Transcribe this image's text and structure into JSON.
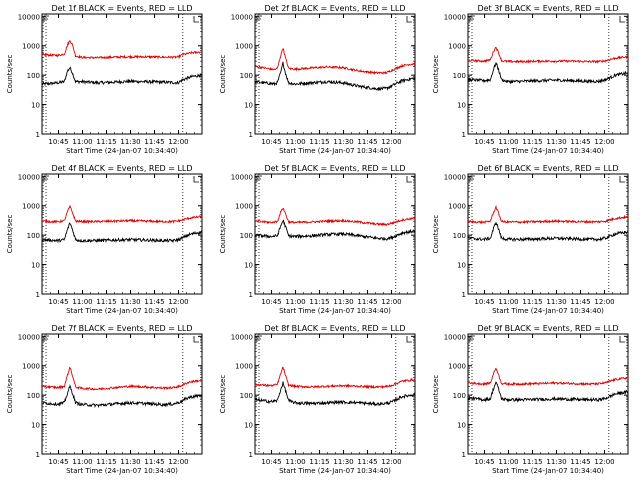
{
  "colors": {
    "events": "#000000",
    "lld": "#e00000",
    "axes": "#000000",
    "background": "#ffffff"
  },
  "chart_data": {
    "type": "line",
    "yscale": "log",
    "xlabel": "Start Time (24-Jan-07 10:34:40)",
    "ylabel": "Counts/sec",
    "x_unit": "minutes after 10:34:40",
    "xlim": [
      0,
      100
    ],
    "ylim": [
      1,
      12000
    ],
    "x_ticks": [
      {
        "label": "10:45",
        "value": 10.33
      },
      {
        "label": "11:00",
        "value": 25.33
      },
      {
        "label": "11:15",
        "value": 40.33
      },
      {
        "label": "11:30",
        "value": 55.33
      },
      {
        "label": "11:45",
        "value": 70.33
      },
      {
        "label": "12:00",
        "value": 85.33
      }
    ],
    "y_ticks": [
      {
        "label": "1",
        "value": 1
      },
      {
        "label": "10",
        "value": 10
      },
      {
        "label": "100",
        "value": 100
      },
      {
        "label": "1000",
        "value": 1000
      },
      {
        "label": "10000",
        "value": 10000
      }
    ],
    "vlines": [
      2.5,
      88
    ],
    "grid": false,
    "panels": [
      {
        "title": "Det 1f BLACK = Events, RED = LLD",
        "series": [
          {
            "key": "events",
            "x": [
              0,
              5,
              10,
              14,
              16,
              17.5,
              19,
              21,
              25,
              35,
              45,
              55,
              65,
              75,
              82,
              85,
              88,
              94,
              100
            ],
            "y": [
              50,
              52,
              55,
              60,
              140,
              180,
              120,
              60,
              60,
              55,
              58,
              62,
              60,
              58,
              56,
              55,
              70,
              90,
              100
            ]
          },
          {
            "key": "lld",
            "x": [
              0,
              5,
              10,
              14,
              16,
              17.5,
              19,
              21,
              25,
              35,
              45,
              55,
              65,
              75,
              82,
              85,
              88,
              94,
              100
            ],
            "y": [
              500,
              480,
              470,
              520,
              1100,
              1500,
              1100,
              450,
              400,
              390,
              410,
              420,
              420,
              410,
              410,
              410,
              500,
              580,
              620
            ]
          }
        ]
      },
      {
        "title": "Det 2f BLACK = Events, RED = LLD",
        "series": [
          {
            "key": "events",
            "x": [
              0,
              5,
              10,
              12,
              14,
              16,
              17.5,
              19,
              21,
              25,
              35,
              45,
              55,
              65,
              75,
              82,
              86,
              92,
              100
            ],
            "y": [
              60,
              55,
              52,
              50,
              55,
              120,
              260,
              120,
              55,
              50,
              55,
              60,
              55,
              42,
              35,
              35,
              45,
              65,
              80
            ]
          },
          {
            "key": "lld",
            "x": [
              0,
              5,
              10,
              12,
              14,
              16,
              17.5,
              19,
              21,
              25,
              35,
              45,
              55,
              65,
              75,
              82,
              86,
              92,
              100
            ],
            "y": [
              200,
              180,
              160,
              155,
              170,
              450,
              850,
              400,
              170,
              160,
              175,
              190,
              180,
              140,
              120,
              120,
              150,
              210,
              250
            ]
          }
        ]
      },
      {
        "title": "Det 3f BLACK = Events, RED = LLD",
        "series": [
          {
            "key": "events",
            "x": [
              0,
              5,
              10,
              14,
              16,
              17.5,
              19,
              21,
              25,
              35,
              45,
              55,
              65,
              75,
              82,
              86,
              92,
              100
            ],
            "y": [
              70,
              68,
              65,
              70,
              160,
              260,
              160,
              70,
              60,
              62,
              65,
              68,
              65,
              62,
              62,
              70,
              100,
              120
            ]
          },
          {
            "key": "lld",
            "x": [
              0,
              5,
              10,
              14,
              16,
              17.5,
              19,
              21,
              25,
              35,
              45,
              55,
              65,
              75,
              82,
              86,
              92,
              100
            ],
            "y": [
              320,
              310,
              300,
              330,
              650,
              900,
              600,
              310,
              290,
              290,
              300,
              300,
              300,
              290,
              290,
              310,
              380,
              420
            ]
          }
        ]
      },
      {
        "title": "Det 4f BLACK = Events, RED = LLD",
        "series": [
          {
            "key": "events",
            "x": [
              0,
              5,
              10,
              14,
              16,
              17.5,
              19,
              21,
              25,
              35,
              45,
              55,
              65,
              75,
              82,
              86,
              92,
              100
            ],
            "y": [
              70,
              68,
              65,
              70,
              160,
              260,
              160,
              70,
              65,
              65,
              68,
              70,
              68,
              65,
              65,
              72,
              105,
              130
            ]
          },
          {
            "key": "lld",
            "x": [
              0,
              5,
              10,
              14,
              16,
              17.5,
              19,
              21,
              25,
              35,
              45,
              55,
              65,
              75,
              82,
              86,
              92,
              100
            ],
            "y": [
              300,
              290,
              285,
              310,
              650,
              950,
              600,
              300,
              290,
              290,
              300,
              310,
              300,
              290,
              290,
              310,
              380,
              430
            ]
          }
        ]
      },
      {
        "title": "Det 5f BLACK = Events, RED = LLD",
        "series": [
          {
            "key": "events",
            "x": [
              0,
              5,
              10,
              14,
              16,
              17.5,
              19,
              21,
              25,
              35,
              45,
              55,
              65,
              75,
              82,
              86,
              92,
              100
            ],
            "y": [
              100,
              95,
              90,
              95,
              200,
              320,
              200,
              95,
              90,
              95,
              105,
              110,
              95,
              80,
              75,
              85,
              120,
              140
            ]
          },
          {
            "key": "lld",
            "x": [
              0,
              5,
              10,
              14,
              16,
              17.5,
              19,
              21,
              25,
              35,
              45,
              55,
              65,
              75,
              82,
              86,
              92,
              100
            ],
            "y": [
              300,
              285,
              270,
              290,
              600,
              850,
              550,
              280,
              270,
              280,
              300,
              310,
              280,
              240,
              230,
              260,
              330,
              380
            ]
          }
        ]
      },
      {
        "title": "Det 6f BLACK = Events, RED = LLD",
        "series": [
          {
            "key": "events",
            "x": [
              0,
              5,
              10,
              14,
              16,
              17.5,
              19,
              21,
              25,
              35,
              45,
              55,
              65,
              75,
              82,
              86,
              92,
              100
            ],
            "y": [
              80,
              75,
              72,
              78,
              170,
              280,
              170,
              78,
              72,
              72,
              75,
              78,
              75,
              72,
              72,
              80,
              110,
              130
            ]
          },
          {
            "key": "lld",
            "x": [
              0,
              5,
              10,
              14,
              16,
              17.5,
              19,
              21,
              25,
              35,
              45,
              55,
              65,
              75,
              82,
              86,
              92,
              100
            ],
            "y": [
              290,
              280,
              275,
              300,
              600,
              900,
              580,
              290,
              280,
              280,
              290,
              300,
              290,
              285,
              285,
              300,
              370,
              420
            ]
          }
        ]
      },
      {
        "title": "Det 7f BLACK = Events, RED = LLD",
        "series": [
          {
            "key": "events",
            "x": [
              0,
              5,
              10,
              14,
              16,
              17.5,
              19,
              21,
              25,
              35,
              45,
              55,
              65,
              75,
              82,
              86,
              92,
              100
            ],
            "y": [
              55,
              52,
              50,
              55,
              120,
              200,
              120,
              55,
              48,
              45,
              50,
              55,
              52,
              48,
              50,
              58,
              85,
              100
            ]
          },
          {
            "key": "lld",
            "x": [
              0,
              5,
              10,
              14,
              16,
              17.5,
              19,
              21,
              25,
              35,
              45,
              55,
              65,
              75,
              82,
              86,
              92,
              100
            ],
            "y": [
              200,
              190,
              180,
              200,
              500,
              900,
              480,
              190,
              170,
              160,
              180,
              200,
              190,
              175,
              180,
              200,
              280,
              320
            ]
          }
        ]
      },
      {
        "title": "Det 8f BLACK = Events, RED = LLD",
        "series": [
          {
            "key": "events",
            "x": [
              0,
              5,
              10,
              14,
              16,
              17.5,
              19,
              21,
              25,
              35,
              45,
              55,
              65,
              75,
              82,
              86,
              92,
              100
            ],
            "y": [
              70,
              65,
              60,
              65,
              150,
              260,
              150,
              65,
              55,
              52,
              55,
              58,
              55,
              50,
              52,
              60,
              90,
              105
            ]
          },
          {
            "key": "lld",
            "x": [
              0,
              5,
              10,
              14,
              16,
              17.5,
              19,
              21,
              25,
              35,
              45,
              55,
              65,
              75,
              82,
              86,
              92,
              100
            ],
            "y": [
              230,
              220,
              210,
              230,
              520,
              900,
              480,
              220,
              200,
              190,
              200,
              210,
              200,
              190,
              195,
              220,
              300,
              340
            ]
          }
        ]
      },
      {
        "title": "Det 9f BLACK = Events, RED = LLD",
        "series": [
          {
            "key": "events",
            "x": [
              0,
              5,
              10,
              14,
              16,
              17.5,
              19,
              21,
              25,
              35,
              45,
              55,
              65,
              75,
              82,
              86,
              92,
              100
            ],
            "y": [
              80,
              75,
              70,
              75,
              170,
              280,
              170,
              75,
              70,
              70,
              72,
              75,
              72,
              70,
              70,
              78,
              110,
              130
            ]
          },
          {
            "key": "lld",
            "x": [
              0,
              5,
              10,
              14,
              16,
              17.5,
              19,
              21,
              25,
              35,
              45,
              55,
              65,
              75,
              82,
              86,
              92,
              100
            ],
            "y": [
              260,
              250,
              240,
              260,
              550,
              850,
              520,
              250,
              240,
              240,
              250,
              260,
              250,
              240,
              245,
              265,
              340,
              390
            ]
          }
        ]
      }
    ]
  }
}
